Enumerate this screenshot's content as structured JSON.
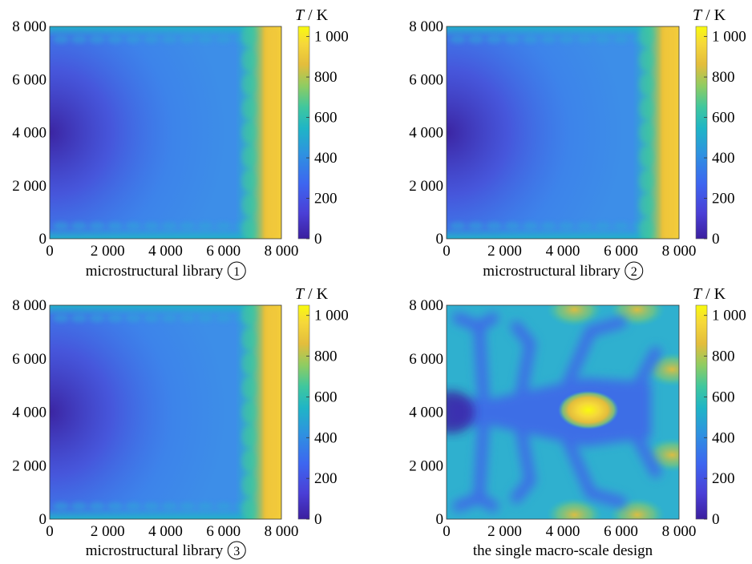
{
  "colormap": [
    "#3b1f9e",
    "#4a3fd6",
    "#3d66f0",
    "#2e92e0",
    "#1fb5c6",
    "#3fc79e",
    "#8fcc62",
    "#e3bd3c",
    "#f6d83a",
    "#f8fa0e"
  ],
  "chart_data": [
    {
      "type": "heatmap",
      "caption": "microstructural library",
      "caption_marker": "1",
      "colorbar_label": "T / K",
      "xlim": [
        0,
        8000
      ],
      "ylim": [
        0,
        8000
      ],
      "clim": [
        0,
        1050
      ],
      "xticks": [
        "0",
        "2 000",
        "4 000",
        "6 000",
        "8 000"
      ],
      "yticks": [
        "0",
        "2 000",
        "4 000",
        "6 000",
        "8 000"
      ],
      "cticks": [
        "0",
        "200",
        "400",
        "600",
        "800",
        "1 000"
      ],
      "field": {
        "background": 380,
        "left_center": 120,
        "right_edge": 1000,
        "edge_bands": 450
      }
    },
    {
      "type": "heatmap",
      "caption": "microstructural library",
      "caption_marker": "2",
      "colorbar_label": "T / K",
      "xlim": [
        0,
        8000
      ],
      "ylim": [
        0,
        8000
      ],
      "clim": [
        0,
        1050
      ],
      "xticks": [
        "0",
        "2 000",
        "4 000",
        "6 000",
        "8 000"
      ],
      "yticks": [
        "0",
        "2 000",
        "4 000",
        "6 000",
        "8 000"
      ],
      "cticks": [
        "0",
        "200",
        "400",
        "600",
        "800",
        "1 000"
      ],
      "field": {
        "background": 360,
        "left_center": 110,
        "right_edge": 1000,
        "edge_bands": 400
      }
    },
    {
      "type": "heatmap",
      "caption": "microstructural library",
      "caption_marker": "3",
      "colorbar_label": "T / K",
      "xlim": [
        0,
        8000
      ],
      "ylim": [
        0,
        8000
      ],
      "clim": [
        0,
        1050
      ],
      "xticks": [
        "0",
        "2 000",
        "4 000",
        "6 000",
        "8 000"
      ],
      "yticks": [
        "0",
        "2 000",
        "4 000",
        "6 000",
        "8 000"
      ],
      "cticks": [
        "0",
        "200",
        "400",
        "600",
        "800",
        "1 000"
      ],
      "field": {
        "background": 370,
        "left_center": 115,
        "right_edge": 1000,
        "edge_bands": 450
      }
    },
    {
      "type": "heatmap",
      "caption": "the single macro-scale design",
      "caption_marker": "",
      "colorbar_label": "T / K",
      "xlim": [
        0,
        8000
      ],
      "ylim": [
        0,
        8000
      ],
      "clim": [
        0,
        1050
      ],
      "xticks": [
        "0",
        "2 000",
        "4 000",
        "6 000",
        "8 000"
      ],
      "yticks": [
        "0",
        "2 000",
        "4 000",
        "6 000",
        "8 000"
      ],
      "cticks": [
        "0",
        "200",
        "400",
        "600",
        "800",
        "1 000"
      ],
      "field": {
        "background": 470,
        "channels": 160,
        "hotspot_center": [
          4900,
          4100
        ],
        "hotspot_peak": 1000,
        "right_edge": 900
      }
    }
  ]
}
